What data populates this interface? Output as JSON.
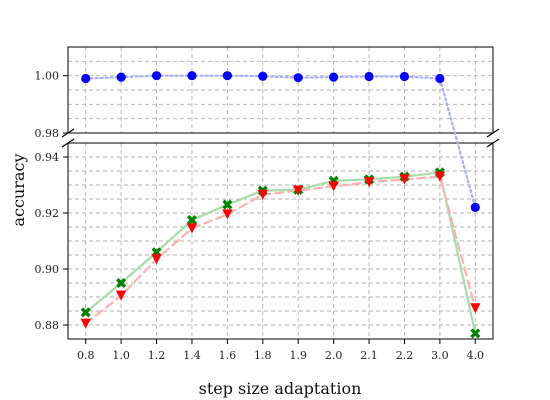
{
  "chart_data": {
    "type": "line",
    "xlabel": "step size adaptation",
    "ylabel": "accuracy",
    "categories": [
      "0.8",
      "1.0",
      "1.2",
      "1.4",
      "1.6",
      "1.8",
      "1.9",
      "2.0",
      "2.1",
      "2.2",
      "3.0",
      "4.0"
    ],
    "top_axis": {
      "ylim": [
        0.98,
        1.01
      ],
      "ticks": [
        "0.98",
        "1.00"
      ]
    },
    "bottom_axis": {
      "ylim": [
        0.875,
        0.945
      ],
      "ticks": [
        "0.88",
        "0.90",
        "0.92",
        "0.94"
      ]
    },
    "grid": true,
    "series": [
      {
        "color": "#0000ff",
        "line_color": "#aaaaff",
        "line_style": "dotted",
        "marker": "circle",
        "values": [
          0.999,
          0.9995,
          1.0,
          1.0,
          1.0,
          0.9998,
          0.9993,
          0.9995,
          0.9997,
          0.9997,
          0.999,
          0.922
        ]
      },
      {
        "color": "#008000",
        "line_color": "#a8dca8",
        "line_style": "solid",
        "marker": "x",
        "values": [
          0.8845,
          0.895,
          0.906,
          0.9175,
          0.923,
          0.928,
          0.9283,
          0.9315,
          0.932,
          0.933,
          0.9345,
          0.877
        ]
      },
      {
        "color": "#ff0000",
        "line_color": "#ffb0b0",
        "line_style": "dashed",
        "marker": "triangle-down",
        "values": [
          0.8805,
          0.8905,
          0.9035,
          0.9145,
          0.9195,
          0.9265,
          0.928,
          0.9295,
          0.931,
          0.932,
          0.933,
          0.886
        ]
      }
    ]
  }
}
